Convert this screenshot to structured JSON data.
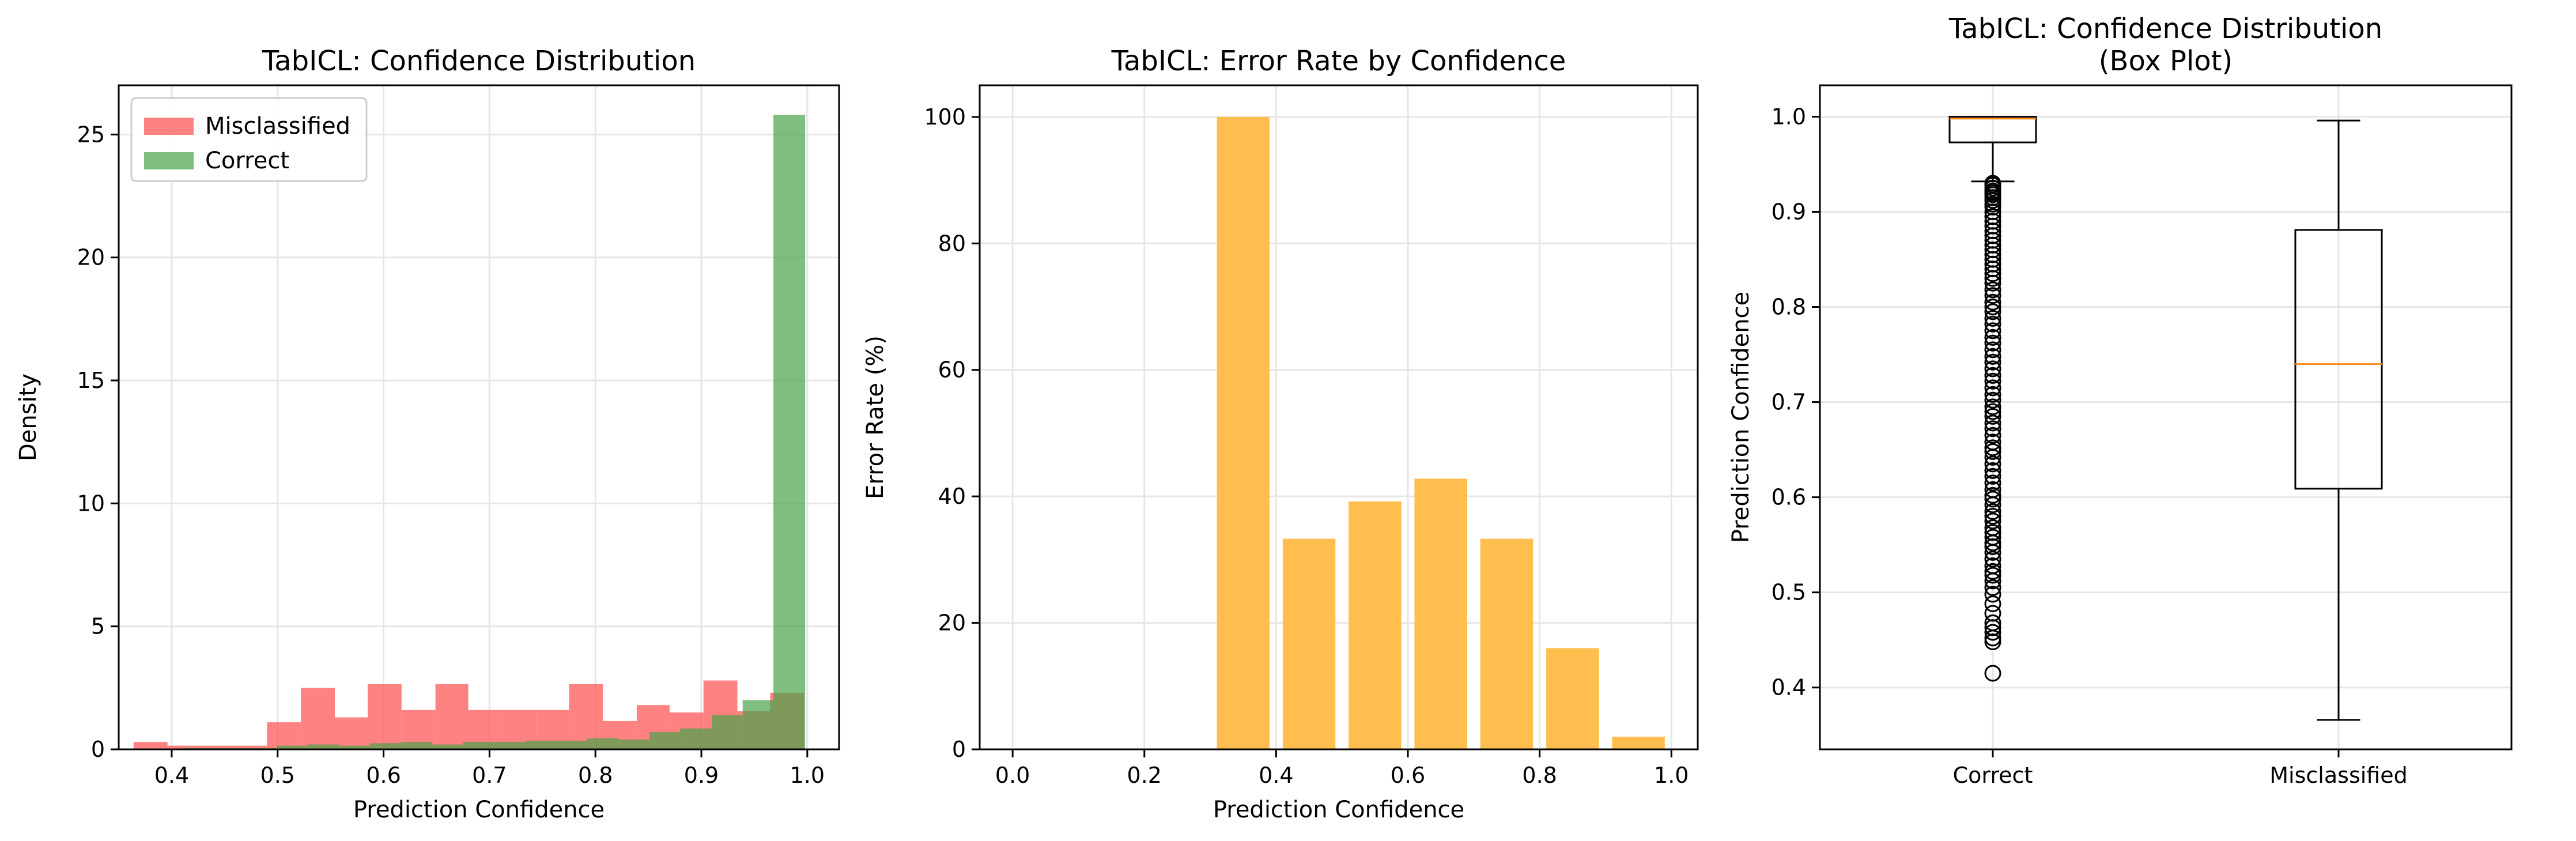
{
  "colors": {
    "misclassified": "#ff4d4d",
    "correct": "#49a349",
    "overlap": "#4d5a18",
    "error_bar": "#ffbe4d",
    "median": "#ff8c1a",
    "grid": "#e6e6e6"
  },
  "chart_data": [
    {
      "type": "bar",
      "subtype": "histogram",
      "title": "TabICL: Confidence Distribution",
      "xlabel": "Prediction Confidence",
      "ylabel": "Density",
      "xlim": [
        0.35,
        1.03
      ],
      "ylim": [
        0,
        27
      ],
      "xticks": [
        0.4,
        0.5,
        0.6,
        0.7,
        0.8,
        0.9,
        1.0
      ],
      "xtick_labels": [
        "0.4",
        "0.5",
        "0.6",
        "0.7",
        "0.8",
        "0.9",
        "1.0"
      ],
      "yticks": [
        0,
        5,
        10,
        15,
        20,
        25
      ],
      "ytick_labels": [
        "0",
        "5",
        "10",
        "15",
        "20",
        "25"
      ],
      "grid": true,
      "legend": "top-left",
      "series": [
        {
          "name": "Misclassified",
          "color": "#ff4d4d",
          "bins": [
            [
              0.364,
              0.396,
              0.3
            ],
            [
              0.396,
              0.427,
              0.15
            ],
            [
              0.427,
              0.459,
              0.15
            ],
            [
              0.459,
              0.49,
              0.15
            ],
            [
              0.49,
              0.522,
              1.1
            ],
            [
              0.522,
              0.554,
              2.5
            ],
            [
              0.554,
              0.585,
              1.3
            ],
            [
              0.585,
              0.617,
              2.65
            ],
            [
              0.617,
              0.649,
              1.6
            ],
            [
              0.649,
              0.68,
              2.65
            ],
            [
              0.68,
              0.712,
              1.6
            ],
            [
              0.712,
              0.744,
              1.6
            ],
            [
              0.744,
              0.775,
              1.6
            ],
            [
              0.775,
              0.807,
              2.65
            ],
            [
              0.807,
              0.839,
              1.15
            ],
            [
              0.839,
              0.87,
              1.8
            ],
            [
              0.87,
              0.902,
              1.5
            ],
            [
              0.902,
              0.934,
              2.8
            ],
            [
              0.934,
              0.965,
              1.55
            ],
            [
              0.965,
              0.997,
              2.3
            ]
          ]
        },
        {
          "name": "Correct",
          "color": "#49a349",
          "bins": [
            [
              0.411,
              0.44,
              0.05
            ],
            [
              0.44,
              0.47,
              0.05
            ],
            [
              0.47,
              0.499,
              0.05
            ],
            [
              0.499,
              0.528,
              0.15
            ],
            [
              0.528,
              0.558,
              0.2
            ],
            [
              0.558,
              0.587,
              0.15
            ],
            [
              0.587,
              0.616,
              0.25
            ],
            [
              0.616,
              0.646,
              0.3
            ],
            [
              0.646,
              0.675,
              0.2
            ],
            [
              0.675,
              0.704,
              0.3
            ],
            [
              0.704,
              0.734,
              0.3
            ],
            [
              0.734,
              0.763,
              0.35
            ],
            [
              0.763,
              0.792,
              0.35
            ],
            [
              0.792,
              0.822,
              0.45
            ],
            [
              0.822,
              0.851,
              0.4
            ],
            [
              0.851,
              0.88,
              0.7
            ],
            [
              0.88,
              0.91,
              0.85
            ],
            [
              0.91,
              0.939,
              1.4
            ],
            [
              0.939,
              0.968,
              2.0
            ],
            [
              0.968,
              0.998,
              25.8
            ]
          ]
        }
      ]
    },
    {
      "type": "bar",
      "title": "TabICL: Error Rate by Confidence",
      "xlabel": "Prediction Confidence",
      "ylabel": "Error Rate (%)",
      "xlim": [
        -0.05,
        1.04
      ],
      "ylim": [
        0,
        105
      ],
      "xticks": [
        0.0,
        0.2,
        0.4,
        0.6,
        0.8,
        1.0
      ],
      "xtick_labels": [
        "0.0",
        "0.2",
        "0.4",
        "0.6",
        "0.8",
        "1.0"
      ],
      "yticks": [
        0,
        20,
        40,
        60,
        80,
        100
      ],
      "ytick_labels": [
        "0",
        "20",
        "40",
        "60",
        "80",
        "100"
      ],
      "grid": true,
      "color": "#ffbe4d",
      "bar_width": 0.08,
      "x": [
        0.35,
        0.45,
        0.55,
        0.65,
        0.75,
        0.85,
        0.95
      ],
      "values": [
        100,
        33.3,
        39.2,
        42.8,
        33.3,
        16.0,
        2.0
      ]
    },
    {
      "type": "box",
      "title": "TabICL: Confidence Distribution",
      "subtitle": "(Box Plot)",
      "xlabel": "",
      "ylabel": "Prediction Confidence",
      "ylim": [
        0.335,
        1.033
      ],
      "yticks": [
        0.4,
        0.5,
        0.6,
        0.7,
        0.8,
        0.9,
        1.0
      ],
      "ytick_labels": [
        "0.4",
        "0.5",
        "0.6",
        "0.7",
        "0.8",
        "0.9",
        "1.0"
      ],
      "grid": true,
      "categories": [
        "Correct",
        "Misclassified"
      ],
      "boxes": [
        {
          "name": "Correct",
          "whisker_low": 0.932,
          "q1": 0.973,
          "median": 0.998,
          "q3": 1.0,
          "whisker_high": 1.0,
          "outliers": [
            0.415,
            0.448,
            0.452,
            0.458,
            0.463,
            0.468,
            0.478,
            0.488,
            0.498,
            0.505,
            0.512,
            0.518,
            0.522,
            0.528,
            0.535,
            0.542,
            0.548,
            0.552,
            0.558,
            0.563,
            0.568,
            0.575,
            0.58,
            0.585,
            0.592,
            0.598,
            0.602,
            0.608,
            0.615,
            0.622,
            0.628,
            0.635,
            0.642,
            0.648,
            0.652,
            0.658,
            0.665,
            0.672,
            0.678,
            0.685,
            0.69,
            0.695,
            0.702,
            0.708,
            0.715,
            0.722,
            0.728,
            0.735,
            0.742,
            0.748,
            0.755,
            0.762,
            0.768,
            0.775,
            0.782,
            0.788,
            0.795,
            0.8,
            0.805,
            0.812,
            0.818,
            0.825,
            0.83,
            0.835,
            0.84,
            0.845,
            0.85,
            0.855,
            0.86,
            0.865,
            0.87,
            0.875,
            0.88,
            0.885,
            0.89,
            0.895,
            0.9,
            0.905,
            0.908,
            0.912,
            0.915,
            0.918,
            0.92,
            0.922,
            0.925,
            0.928,
            0.93
          ]
        },
        {
          "name": "Misclassified",
          "whisker_low": 0.366,
          "q1": 0.609,
          "median": 0.74,
          "q3": 0.881,
          "whisker_high": 0.996,
          "outliers": []
        }
      ]
    }
  ]
}
